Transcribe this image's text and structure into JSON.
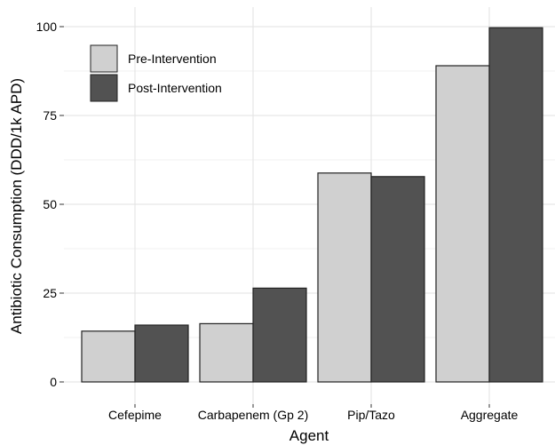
{
  "chart_data": {
    "type": "bar",
    "categories": [
      "Cefepime",
      "Carbapenem (Gp 2)",
      "Pip/Tazo",
      "Aggregate"
    ],
    "series": [
      {
        "name": "Pre-Intervention",
        "color": "#d0d0d0",
        "values": [
          14.3,
          16.4,
          58.8,
          89.0
        ]
      },
      {
        "name": "Post-Intervention",
        "color": "#525252",
        "values": [
          16.0,
          26.4,
          57.8,
          99.7
        ]
      }
    ],
    "xlabel": "Agent",
    "ylabel": "Antibiotic Consumption (DDD/1k APD)",
    "ylim": [
      0,
      100
    ],
    "yticks": [
      0,
      25,
      50,
      75,
      100
    ],
    "grid": true,
    "legend_position": "top-left"
  }
}
